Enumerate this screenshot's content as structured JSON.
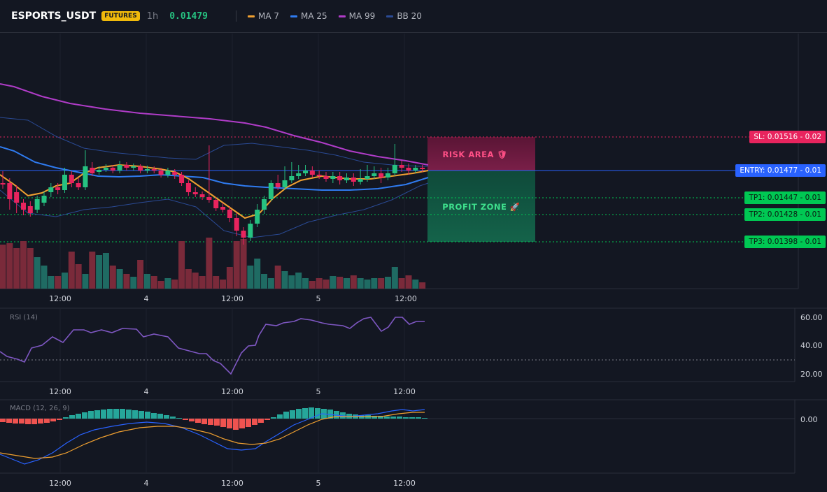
{
  "header": {
    "symbol": "ESPORTS_USDT",
    "badge": "FUTURES",
    "timeframe": "1h",
    "last_price": "0.01479",
    "legend": [
      {
        "label": "MA 7",
        "color": "#f0a030",
        "icon": "ma7-swatch-icon"
      },
      {
        "label": "MA 25",
        "color": "#2f7bf0",
        "icon": "ma25-swatch-icon"
      },
      {
        "label": "MA 99",
        "color": "#b03cc8",
        "icon": "ma99-swatch-icon"
      },
      {
        "label": "BB 20",
        "color": "#2a4a94",
        "icon": "bb20-swatch-icon"
      }
    ]
  },
  "levels": {
    "sl": "SL: 0.01516 - 0.02",
    "entry": "ENTRY: 0.01477 - 0.01",
    "tp1": "TP1: 0.01447 - 0.01",
    "tp2": "TP2: 0.01428 - 0.01",
    "tp3": "TP3: 0.01398 - 0.01"
  },
  "zones": {
    "risk_label": "RISK AREA 🛡",
    "profit_label": "PROFIT ZONE 🚀"
  },
  "time_axis": [
    "12:00",
    "4",
    "12:00",
    "5",
    "12:00"
  ],
  "rsi": {
    "label": "RSI (14)",
    "ticks": [
      "60.00",
      "40.00",
      "20.00"
    ]
  },
  "macd": {
    "label": "MACD (12, 26, 9)",
    "tick": "0.00"
  },
  "colors": {
    "up": "#26c281",
    "down": "#e8245e",
    "vol_up": "#1f6b63",
    "vol_down": "#7a2a3a",
    "ma7": "#f0a030",
    "ma25": "#2f7bf0",
    "ma99": "#b03cc8",
    "bb": "#2a4a94",
    "sl": "#e8245e",
    "entry": "#2962ff",
    "tp": "#00c853",
    "rsi": "#7e57c2",
    "macd": "#2962ff",
    "signal": "#f0a030"
  }
}
